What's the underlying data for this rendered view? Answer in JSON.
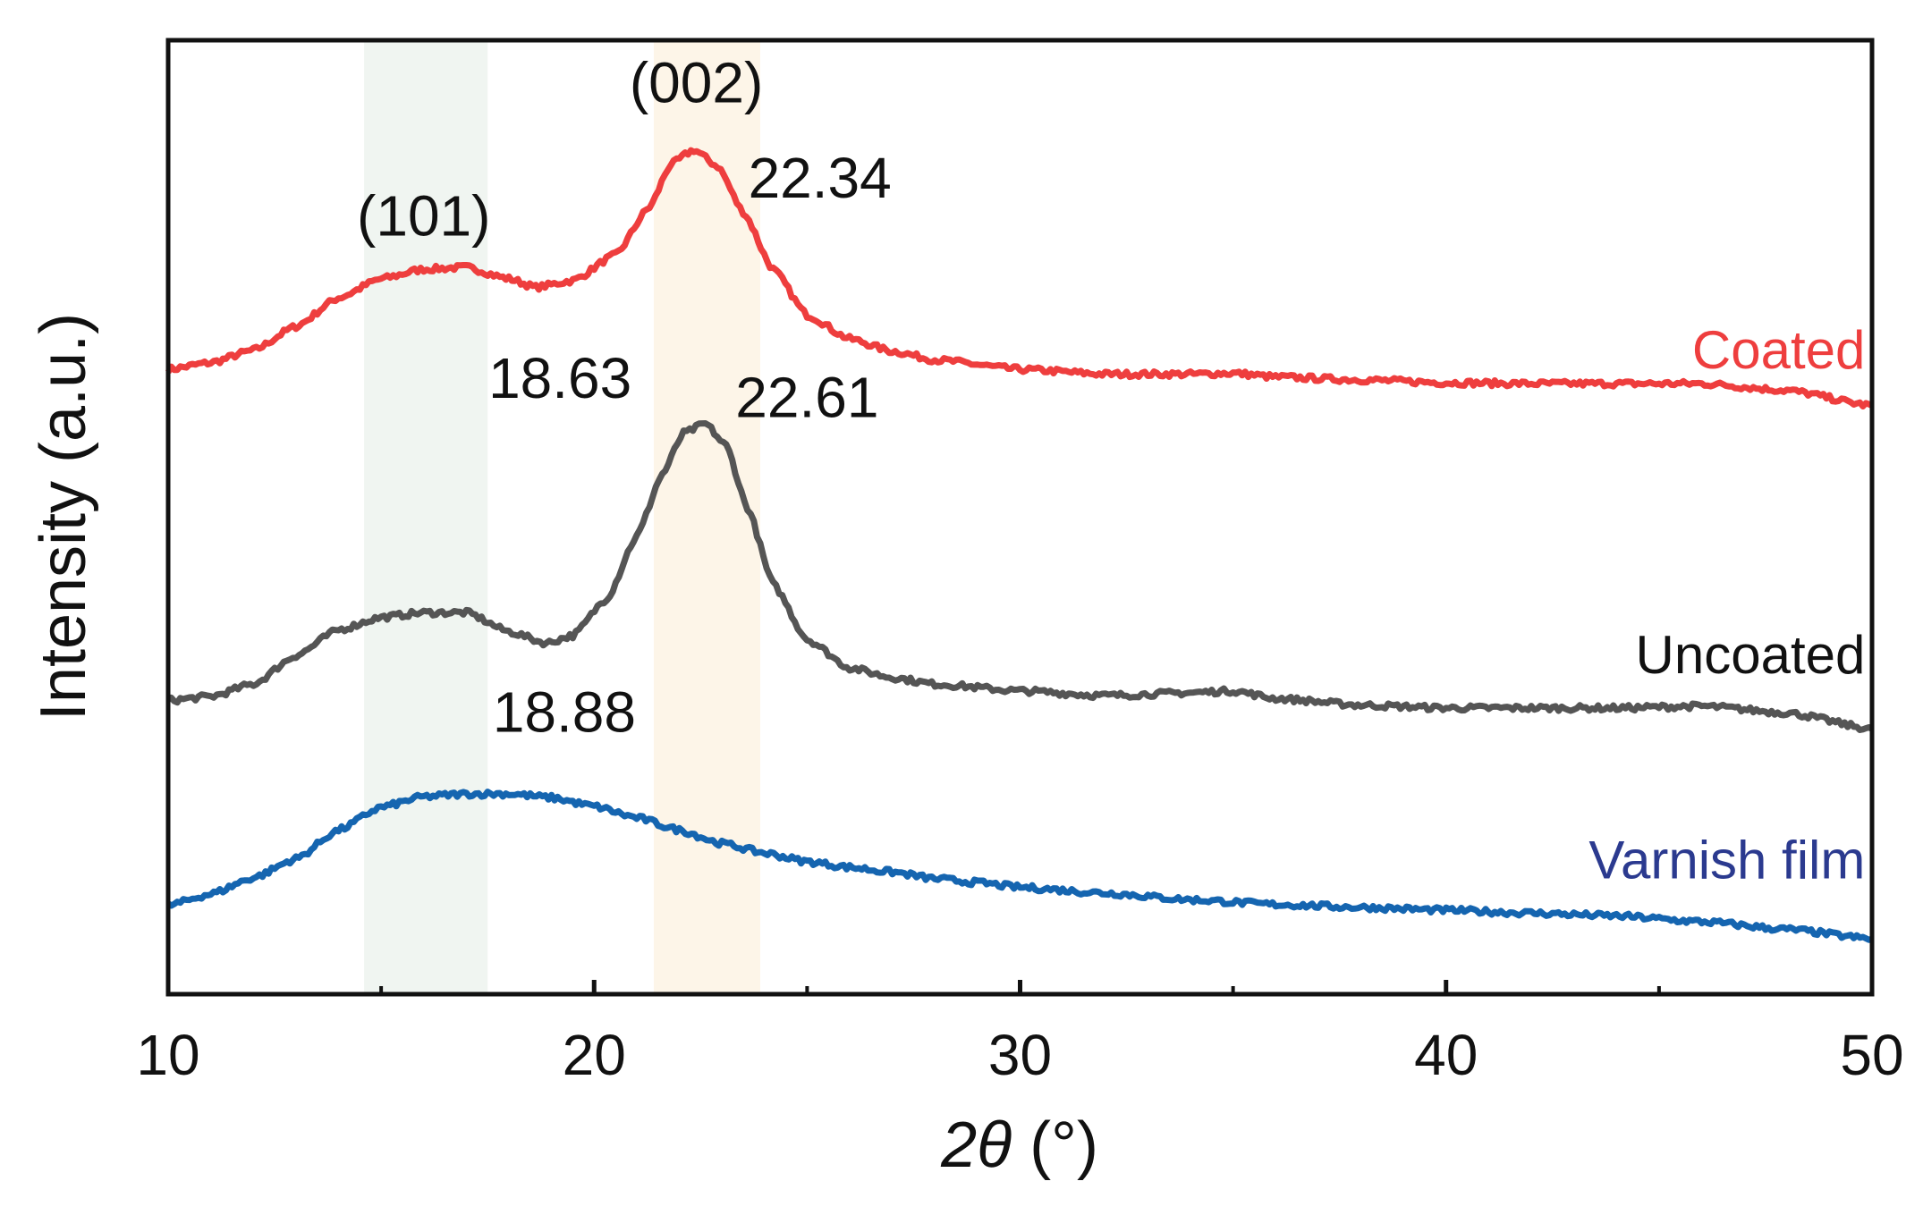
{
  "chart_data": {
    "type": "line",
    "title": "",
    "xlabel_main": "2θ",
    "xlabel_unit": " (°)",
    "ylabel": "Intensity (a.u.)",
    "xlim": [
      10,
      50
    ],
    "ylim": [
      0,
      1
    ],
    "xticks": [
      10,
      20,
      30,
      40,
      50
    ],
    "xticks_minor": [
      15,
      25,
      35,
      45
    ],
    "grid": false,
    "y_tick_labels_shown": false,
    "highlight_bands": [
      {
        "name": "band-101",
        "x_start": 14.6,
        "x_end": 17.5,
        "color": "#f0f5f1"
      },
      {
        "name": "band-002",
        "x_start": 21.4,
        "x_end": 23.9,
        "color": "#fdf5e8"
      }
    ],
    "annotations": [
      {
        "name": "label-002",
        "text": "(002)",
        "x": 22.4,
        "y": 0.935
      },
      {
        "name": "label-101",
        "text": "(101)",
        "x": 16.0,
        "y": 0.795
      },
      {
        "name": "value-22-34",
        "text": "22.34",
        "x": 25.3,
        "y": 0.835
      },
      {
        "name": "value-18-63",
        "text": "18.63",
        "x": 19.2,
        "y": 0.625
      },
      {
        "name": "value-22-61",
        "text": "22.61",
        "x": 25.0,
        "y": 0.605
      },
      {
        "name": "value-18-88",
        "text": "18.88",
        "x": 19.3,
        "y": 0.275
      }
    ],
    "series": [
      {
        "name": "Coated",
        "color": "#ee3e3e",
        "label_x": 49.0,
        "label_y": 0.675,
        "points": [
          [
            10,
            0.655
          ],
          [
            11,
            0.662
          ],
          [
            12,
            0.675
          ],
          [
            13,
            0.7
          ],
          [
            14,
            0.73
          ],
          [
            15,
            0.75
          ],
          [
            16,
            0.76
          ],
          [
            17,
            0.762
          ],
          [
            18,
            0.75
          ],
          [
            18.63,
            0.741
          ],
          [
            19.5,
            0.748
          ],
          [
            20.5,
            0.775
          ],
          [
            21.3,
            0.825
          ],
          [
            21.8,
            0.87
          ],
          [
            22.34,
            0.885
          ],
          [
            22.9,
            0.868
          ],
          [
            23.5,
            0.82
          ],
          [
            24.2,
            0.76
          ],
          [
            25,
            0.712
          ],
          [
            26,
            0.687
          ],
          [
            27,
            0.674
          ],
          [
            28,
            0.665
          ],
          [
            30,
            0.655
          ],
          [
            32,
            0.65
          ],
          [
            34,
            0.65
          ],
          [
            35,
            0.651
          ],
          [
            36,
            0.647
          ],
          [
            38,
            0.644
          ],
          [
            40,
            0.641
          ],
          [
            42,
            0.64
          ],
          [
            44,
            0.64
          ],
          [
            46,
            0.64
          ],
          [
            48,
            0.633
          ],
          [
            50,
            0.617
          ]
        ]
      },
      {
        "name": "Uncoated",
        "color": "#555555",
        "label_x": 49.0,
        "label_y": 0.355,
        "points": [
          [
            10,
            0.308
          ],
          [
            11,
            0.312
          ],
          [
            12,
            0.325
          ],
          [
            13,
            0.355
          ],
          [
            14,
            0.382
          ],
          [
            15,
            0.395
          ],
          [
            16,
            0.4
          ],
          [
            17,
            0.4
          ],
          [
            18,
            0.38
          ],
          [
            18.88,
            0.368
          ],
          [
            19.5,
            0.376
          ],
          [
            20.3,
            0.415
          ],
          [
            21,
            0.48
          ],
          [
            21.6,
            0.545
          ],
          [
            22.1,
            0.588
          ],
          [
            22.61,
            0.598
          ],
          [
            23.1,
            0.575
          ],
          [
            23.6,
            0.51
          ],
          [
            24.2,
            0.43
          ],
          [
            25,
            0.372
          ],
          [
            26,
            0.342
          ],
          [
            27,
            0.332
          ],
          [
            28,
            0.325
          ],
          [
            30,
            0.318
          ],
          [
            32,
            0.313
          ],
          [
            34,
            0.316
          ],
          [
            35,
            0.318
          ],
          [
            36,
            0.31
          ],
          [
            38,
            0.303
          ],
          [
            40,
            0.3
          ],
          [
            42,
            0.3
          ],
          [
            44,
            0.3
          ],
          [
            46,
            0.302
          ],
          [
            48,
            0.295
          ],
          [
            50,
            0.278
          ]
        ]
      },
      {
        "name": "Varnish film",
        "color": "#1565b0",
        "label_x": 49.0,
        "label_y": 0.14,
        "points": [
          [
            10,
            0.093
          ],
          [
            11,
            0.105
          ],
          [
            12,
            0.122
          ],
          [
            13,
            0.142
          ],
          [
            14,
            0.172
          ],
          [
            15,
            0.196
          ],
          [
            16,
            0.207
          ],
          [
            17,
            0.21
          ],
          [
            18,
            0.21
          ],
          [
            19,
            0.206
          ],
          [
            20,
            0.197
          ],
          [
            21,
            0.185
          ],
          [
            22,
            0.172
          ],
          [
            23,
            0.158
          ],
          [
            24,
            0.148
          ],
          [
            25,
            0.139
          ],
          [
            26,
            0.133
          ],
          [
            27,
            0.128
          ],
          [
            28,
            0.121
          ],
          [
            29,
            0.117
          ],
          [
            30,
            0.112
          ],
          [
            32,
            0.106
          ],
          [
            34,
            0.099
          ],
          [
            36,
            0.094
          ],
          [
            38,
            0.091
          ],
          [
            40,
            0.088
          ],
          [
            42,
            0.085
          ],
          [
            44,
            0.082
          ],
          [
            46,
            0.076
          ],
          [
            48,
            0.068
          ],
          [
            50,
            0.058
          ]
        ]
      }
    ]
  }
}
